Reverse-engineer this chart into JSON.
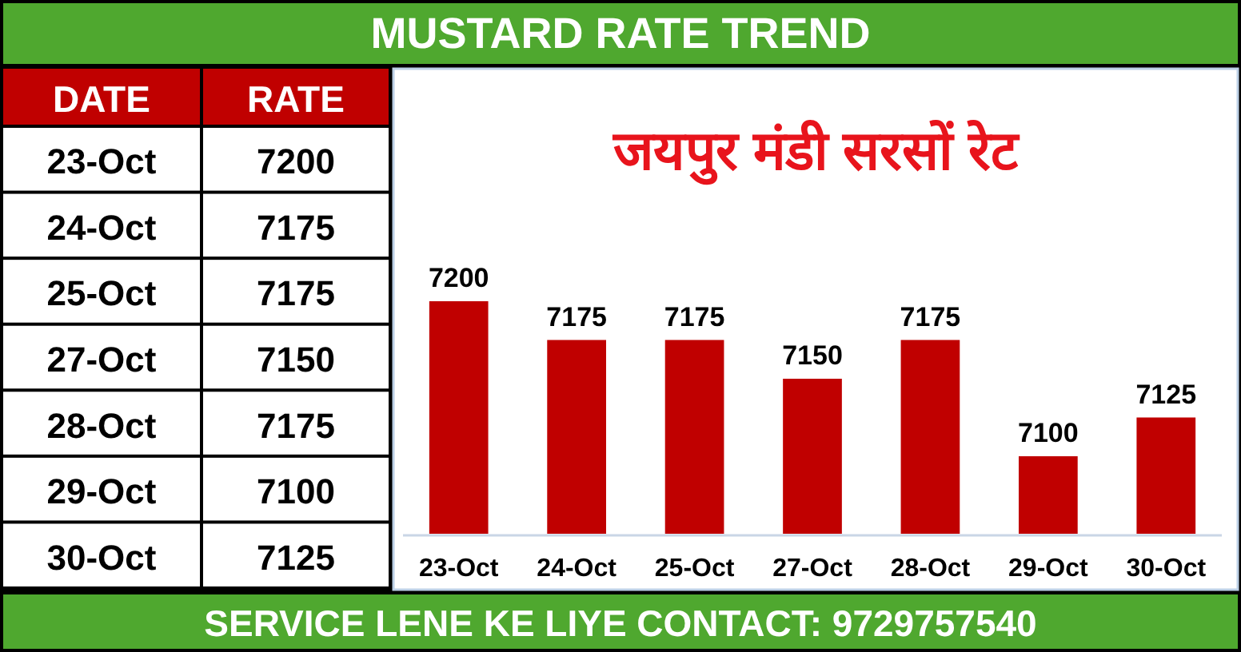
{
  "chart_data": [
    {
      "type": "other",
      "annotations": [
        "DATE",
        "RATE",
        "23-Oct",
        "7200",
        "24-Oct",
        "7175",
        "25-Oct",
        "7175",
        "27-Oct",
        "7150",
        "28-Oct",
        "7175",
        "29-Oct",
        "7100",
        "30-Oct",
        "7125"
      ]
    },
    {
      "type": "bar",
      "title": "MUSTARD RATE TREND",
      "subtitle": "जयपुर मंडी सरसों रेट",
      "categories": [
        "23-Oct",
        "24-Oct",
        "25-Oct",
        "27-Oct",
        "28-Oct",
        "29-Oct",
        "30-Oct"
      ],
      "values": [
        7200,
        7175,
        7175,
        7150,
        7175,
        7100,
        7125
      ],
      "color": "#c00000",
      "ylim": [
        7050,
        7350
      ],
      "tick_labels": "x",
      "data_labels": true,
      "annotations": [
        "SERVICE LENE KE LIYE CONTACT: 9729757540"
      ]
    }
  ]
}
